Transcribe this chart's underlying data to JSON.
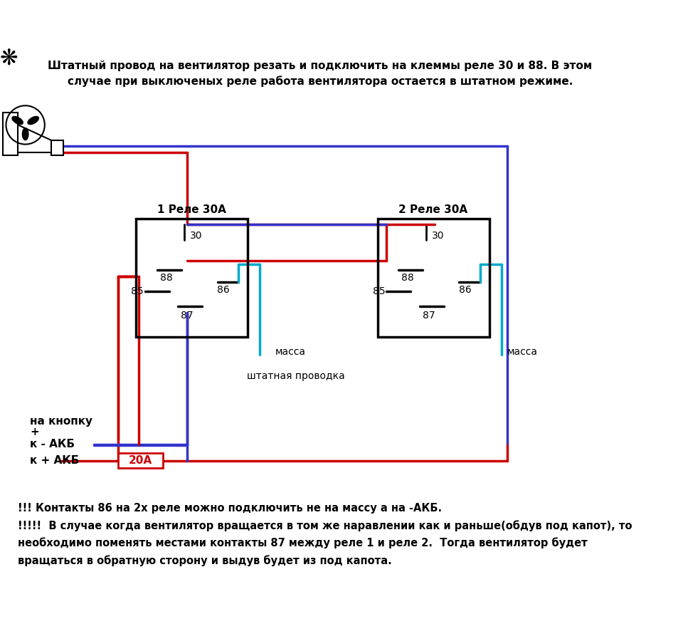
{
  "title_text": "Штатный провод на вентилятор резать и подключить на клеммы реле 30 и 88. В этом\nслучае при выключеных реле работа вентилятора остается в штатном режиме.",
  "bottom_text": "!!! Контакты 86 на 2х реле можно подключить не на массу а на -АКБ.\n!!!!!  В случае когда вентилятор вращается в том же наравлении как и раньше(обдув под капот), то\nнеобходимо поменять местами контакты 87 между реле 1 и реле 2.  Тогда вентилятор будет\nвращаться в обратную сторону и выдув будет из под капота.",
  "relay1_label": "1 Реле 30А",
  "relay2_label": "2 Реле 30А",
  "fuse_label": "20А",
  "massa_label": "масса",
  "massa2_label": "масса",
  "shtat_label": "штатная проводка",
  "na_knopku_label": "на кнопку",
  "plus_label": "+",
  "k_akb_minus_label": "к - АКБ",
  "k_akb_plus_label": "к + АКБ",
  "red": "#cc0000",
  "blue": "#3333cc",
  "cyan": "#00aacc",
  "black": "#000000",
  "white": "#ffffff",
  "bg": "#ffffff"
}
